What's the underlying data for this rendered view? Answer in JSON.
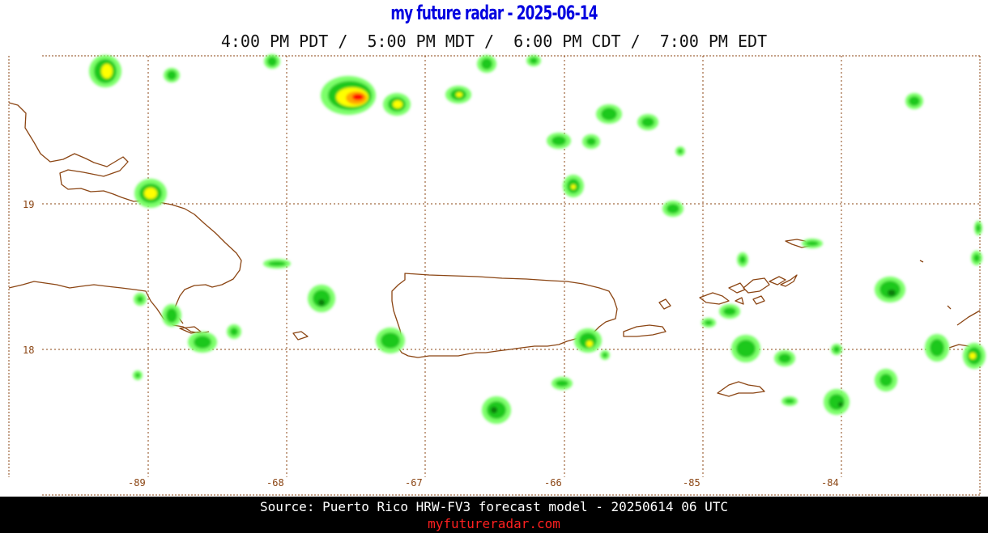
{
  "header": {
    "title": "my future radar - 2025-06-14",
    "times": "4:00 PM PDT /  5:00 PM MDT /  6:00 PM CDT /  7:00 PM EDT"
  },
  "map": {
    "lat_labels": [
      "19",
      "18"
    ],
    "lon_labels": [
      "-89",
      "-68",
      "-67",
      "-66",
      "-85",
      "-84"
    ],
    "grid_color": "#8b4513",
    "coast_color": "#8b4513",
    "echo_colors": {
      "light": "#7dff6a",
      "medium": "#1ec81e",
      "heavy": "#0a7a0a",
      "yellow": "#ffff00",
      "orange": "#ffa500",
      "red": "#ff0000"
    }
  },
  "footer": {
    "source": "Source: Puerto Rico HRW-FV3 forecast model - 20250614 06 UTC",
    "site": "myfutureradar.com"
  }
}
